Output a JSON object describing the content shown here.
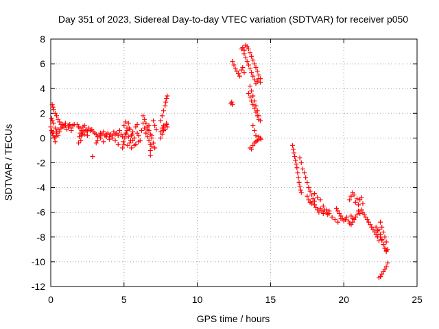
{
  "chart_data": {
    "type": "scatter",
    "title": "Day 351 of 2023, Sidereal Day-to-day VTEC variation (SDTVAR) for receiver p050",
    "xlabel": "GPS time / hours",
    "ylabel": "SDTVAR / TECUs",
    "xlim": [
      0,
      25
    ],
    "ylim": [
      -12,
      8
    ],
    "xticks": [
      "0",
      "5",
      "10",
      "15",
      "20",
      "25"
    ],
    "yticks": [
      "-12",
      "-10",
      "-8",
      "-6",
      "-4",
      "-2",
      "0",
      "2",
      "4",
      "6",
      "8"
    ],
    "grid": true,
    "marker": "+",
    "color": "#ff0000",
    "series": [
      {
        "name": "SDTVAR",
        "x": [
          0.0,
          0.05,
          0.1,
          0.15,
          0.2,
          0.25,
          0.3,
          0.35,
          0.4,
          0.5,
          0.6,
          0.7,
          0.8,
          0.9,
          1.0,
          1.1,
          1.2,
          1.3,
          1.4,
          1.5,
          0.1,
          0.15,
          0.2,
          0.3,
          0.4,
          0.5,
          0.6,
          0.7,
          0.8,
          0.9,
          1.0,
          1.2,
          1.4,
          1.6,
          0.05,
          0.1,
          0.2,
          0.3,
          0.4,
          0.5,
          1.8,
          1.9,
          2.0,
          2.1,
          2.2,
          2.3,
          2.4,
          2.5,
          2.6,
          2.7,
          2.8,
          2.9,
          1.9,
          2.0,
          2.1,
          2.2,
          2.3,
          2.4,
          2.5,
          1.95,
          2.05,
          2.15,
          3.0,
          3.1,
          3.2,
          3.3,
          3.4,
          3.5,
          3.6,
          3.7,
          3.8,
          3.9,
          4.0,
          4.1,
          4.2,
          4.3,
          4.4,
          4.5,
          4.6,
          4.7,
          4.8,
          4.9,
          3.2,
          3.4,
          3.6,
          3.8,
          4.0,
          4.2,
          4.4,
          2.85,
          3.1,
          4.6,
          4.9,
          5.0,
          5.1,
          5.2,
          5.3,
          5.4,
          5.5,
          5.6,
          5.7,
          5.8,
          5.9,
          6.0,
          5.0,
          5.1,
          5.2,
          5.3,
          5.4,
          5.5,
          5.6,
          5.7,
          5.8,
          5.9,
          6.0,
          6.1,
          6.2,
          4.95,
          5.05,
          5.15,
          5.25,
          5.35,
          5.45,
          5.55,
          6.3,
          6.4,
          6.5,
          6.6,
          6.7,
          6.8,
          6.9,
          7.0,
          7.1,
          6.3,
          6.4,
          6.5,
          6.6,
          6.7,
          6.8,
          6.5,
          6.6,
          6.7,
          6.8,
          6.9,
          7.0,
          7.0,
          7.1,
          7.2,
          6.8,
          6.9,
          7.5,
          7.6,
          7.7,
          7.8,
          7.9,
          7.5,
          7.6,
          7.7,
          7.8,
          7.85,
          7.9,
          7.95,
          7.5,
          7.6,
          7.7,
          7.8,
          7.9,
          7.95,
          12.3,
          12.35,
          12.4,
          12.4,
          12.5,
          12.6,
          12.7,
          12.8,
          12.9,
          13.0,
          13.1,
          13.2,
          13.0,
          13.1,
          13.2,
          13.3,
          13.4,
          13.5,
          13.6,
          13.7,
          13.8,
          13.9,
          14.0,
          14.1,
          14.2,
          14.3,
          13.2,
          13.3,
          13.4,
          13.5,
          13.6,
          13.7,
          13.8,
          13.9,
          14.0,
          14.1,
          14.2,
          14.3,
          13.5,
          13.6,
          13.7,
          13.8,
          13.9,
          14.0,
          14.1,
          14.2,
          13.6,
          13.7,
          13.8,
          13.9,
          14.0,
          14.1,
          14.2,
          14.3,
          13.8,
          13.9,
          14.0,
          14.1,
          14.2,
          14.3,
          14.35,
          13.6,
          13.7,
          13.8,
          13.9,
          14.0,
          14.1,
          14.2,
          16.5,
          16.55,
          16.6,
          16.65,
          16.7,
          16.75,
          16.8,
          16.85,
          16.9,
          16.95,
          17.0,
          17.05,
          17.1,
          17.0,
          17.1,
          17.2,
          17.3,
          17.4,
          17.5,
          17.6,
          17.7,
          17.8,
          17.9,
          18.0,
          17.5,
          17.6,
          17.7,
          17.8,
          17.9,
          18.0,
          18.1,
          18.2,
          18.3,
          18.4,
          18.5,
          18.6,
          18.7,
          18.8,
          18.9,
          19.0,
          18.0,
          18.2,
          18.4,
          18.6,
          18.8,
          19.0,
          19.2,
          19.4,
          19.6,
          19.8,
          19.5,
          19.6,
          19.7,
          19.8,
          19.9,
          20.0,
          20.1,
          20.2,
          20.3,
          20.4,
          20.5,
          20.6,
          20.4,
          20.5,
          20.6,
          20.7,
          20.8,
          20.9,
          21.0,
          21.1,
          21.2,
          21.3,
          20.5,
          20.6,
          20.7,
          20.8,
          20.9,
          21.0,
          21.1,
          21.2,
          21.3,
          21.4,
          21.5,
          21.6,
          21.7,
          21.8,
          21.9,
          22.0,
          22.1,
          22.2,
          22.3,
          22.4,
          22.2,
          22.3,
          22.4,
          22.5,
          22.6,
          22.7,
          22.8,
          22.9,
          22.4,
          22.5,
          22.6,
          22.7,
          22.8,
          22.9,
          23.0,
          22.4,
          22.5,
          22.6,
          22.7,
          22.8,
          22.9,
          23.0,
          22.5,
          22.6,
          22.7,
          22.8,
          22.9
        ],
        "y": [
          0.9,
          0.6,
          0.4,
          0.2,
          0.5,
          0.0,
          -0.3,
          0.1,
          0.4,
          0.7,
          0.5,
          0.8,
          1.1,
          0.9,
          1.0,
          0.7,
          0.9,
          1.1,
          0.6,
          1.0,
          2.7,
          2.5,
          2.3,
          2.0,
          1.8,
          1.5,
          1.3,
          1.1,
          0.9,
          1.0,
          1.2,
          1.0,
          0.8,
          1.1,
          1.6,
          1.4,
          1.2,
          0.8,
          0.5,
          0.2,
          1.1,
          0.9,
          0.8,
          0.6,
          0.9,
          1.0,
          0.7,
          0.5,
          0.8,
          0.6,
          0.7,
          0.5,
          -0.4,
          0.4,
          0.2,
          0.5,
          0.3,
          0.6,
          0.2,
          0.1,
          -0.2,
          0.3,
          0.4,
          0.3,
          0.1,
          0.2,
          0.4,
          0.3,
          0.5,
          0.2,
          0.3,
          0.4,
          0.1,
          0.3,
          0.2,
          0.5,
          0.3,
          0.4,
          0.2,
          0.6,
          0.3,
          0.1,
          -0.2,
          0.0,
          -0.3,
          0.1,
          -0.1,
          0.0,
          -0.2,
          -1.5,
          -0.4,
          -0.5,
          -0.8,
          -0.5,
          0.3,
          0.8,
          1.2,
          0.7,
          0.2,
          -0.2,
          -0.6,
          0.9,
          0.4,
          -0.3,
          1.0,
          1.3,
          0.6,
          0.1,
          -0.4,
          -0.8,
          0.5,
          0.0,
          -0.5,
          1.1,
          0.2,
          -0.2,
          0.6,
          -0.3,
          0.0,
          0.4,
          -0.6,
          0.8,
          -0.2,
          0.3,
          1.8,
          1.5,
          1.2,
          0.9,
          0.6,
          0.3,
          0.0,
          -0.4,
          -0.8,
          1.2,
          0.8,
          0.4,
          0.1,
          -0.2,
          -0.5,
          0.4,
          0.7,
          1.0,
          -1.0,
          0.2,
          -0.4,
          1.4,
          1.0,
          0.7,
          -1.4,
          -0.7,
          0.0,
          0.3,
          0.6,
          0.9,
          1.1,
          1.4,
          1.8,
          2.2,
          2.6,
          2.9,
          3.2,
          3.4,
          0.5,
          0.8,
          1.0,
          0.7,
          1.2,
          0.9,
          2.8,
          2.9,
          2.7,
          6.2,
          5.9,
          5.6,
          5.4,
          5.2,
          5.0,
          5.5,
          5.7,
          5.3,
          7.2,
          7.3,
          7.1,
          7.5,
          7.4,
          7.2,
          6.9,
          6.6,
          6.3,
          6.0,
          5.7,
          5.4,
          5.1,
          4.8,
          6.8,
          6.5,
          6.2,
          5.9,
          5.6,
          5.3,
          5.0,
          4.7,
          4.4,
          4.6,
          4.8,
          4.5,
          3.6,
          3.3,
          3.0,
          2.7,
          2.4,
          2.1,
          1.8,
          1.5,
          4.2,
          3.8,
          3.4,
          3.0,
          2.6,
          2.2,
          1.8,
          1.4,
          1.0,
          0.6,
          0.2,
          -0.2,
          0.1,
          0.0,
          -0.1,
          -0.8,
          -0.9,
          -0.6,
          -0.4,
          -0.3,
          -0.2,
          -0.1,
          -0.6,
          -0.9,
          -1.2,
          -1.5,
          -1.8,
          -2.1,
          -2.4,
          -2.8,
          -3.2,
          -3.6,
          -3.9,
          -4.2,
          -4.4,
          -1.6,
          -2.0,
          -2.5,
          -2.8,
          -3.2,
          -3.6,
          -4.0,
          -4.3,
          -4.6,
          -4.9,
          -5.1,
          -4.7,
          -5.0,
          -5.2,
          -5.3,
          -5.1,
          -5.4,
          -5.6,
          -5.8,
          -6.0,
          -5.7,
          -5.9,
          -6.1,
          -5.8,
          -6.0,
          -6.2,
          -5.9,
          -4.5,
          -4.8,
          -5.0,
          -5.5,
          -5.8,
          -6.1,
          -6.4,
          -6.6,
          -6.8,
          -6.5,
          -5.7,
          -5.9,
          -6.1,
          -6.3,
          -6.5,
          -6.7,
          -6.6,
          -6.4,
          -6.7,
          -6.9,
          -7.0,
          -6.8,
          -5.0,
          -4.7,
          -4.4,
          -4.6,
          -5.2,
          -4.9,
          -5.4,
          -5.0,
          -4.8,
          -5.3,
          -6.3,
          -6.5,
          -6.6,
          -6.4,
          -6.2,
          -5.9,
          -6.1,
          -5.8,
          -6.0,
          -6.2,
          -6.4,
          -6.6,
          -6.8,
          -7.0,
          -7.2,
          -7.4,
          -7.6,
          -7.8,
          -8.0,
          -8.3,
          -7.2,
          -7.5,
          -7.8,
          -8.0,
          -8.3,
          -8.6,
          -8.9,
          -9.1,
          -7.4,
          -7.8,
          -8.2,
          -8.6,
          -8.9,
          -9.2,
          -9.0,
          -11.3,
          -11.2,
          -11.0,
          -10.8,
          -10.6,
          -10.4,
          -10.1,
          -6.8,
          -7.2,
          -7.6,
          -8.0,
          -8.4
        ]
      }
    ]
  }
}
